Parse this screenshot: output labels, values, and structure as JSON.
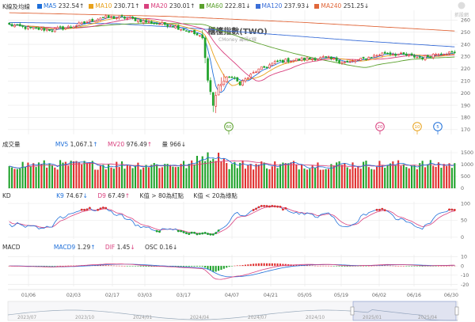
{
  "header": {
    "section_label": "K線及均線",
    "ma": [
      {
        "key": "MA5",
        "value": "232.54",
        "dir": "↑",
        "color": "#1e6fd9"
      },
      {
        "key": "MA10",
        "value": "230.71",
        "dir": "↑",
        "color": "#e8a21c"
      },
      {
        "key": "MA20",
        "value": "230.01",
        "dir": "↑",
        "color": "#d9407e"
      },
      {
        "key": "MA60",
        "value": "222.81",
        "dir": "↓",
        "color": "#5aa02c"
      },
      {
        "key": "MA120",
        "value": "237.93",
        "dir": "↓",
        "color": "#3b6fd8"
      },
      {
        "key": "MA240",
        "value": "251.25",
        "dir": "↓",
        "color": "#e0673a"
      }
    ]
  },
  "watermark": {
    "title": "櫃檯指數(TWO)",
    "subtitle": "CMoney 籌碼K線"
  },
  "logo_text": "抓股網",
  "volume_panel": {
    "label": "成交量",
    "mv5": {
      "key": "MV5",
      "value": "1,067.1",
      "dir": "↑",
      "color": "#1e6fd9"
    },
    "mv20": {
      "key": "MV20",
      "value": "976.49",
      "dir": "↑",
      "color": "#d9407e"
    },
    "vol": {
      "key": "量",
      "value": "966",
      "dir": "↓"
    }
  },
  "kd_panel": {
    "label": "KD",
    "k": {
      "key": "K9",
      "value": "74.67",
      "dir": "↓",
      "color": "#1e6fd9"
    },
    "d": {
      "key": "D9",
      "value": "67.49",
      "dir": "↑",
      "color": "#d9407e"
    },
    "note_hi": "K值 > 80為紅點",
    "note_lo": "K值 < 20為綠點"
  },
  "macd_panel": {
    "label": "MACD",
    "macd9": {
      "key": "MACD9",
      "value": "1.29",
      "dir": "↑",
      "color": "#1e6fd9"
    },
    "dif": {
      "key": "DIF",
      "value": "1.45",
      "dir": "↓",
      "color": "#d9407e"
    },
    "osc": {
      "key": "OSC",
      "value": "0.16",
      "dir": "↓"
    }
  },
  "colors": {
    "up": "#e0302f",
    "down": "#21a32c",
    "grid": "#e8e8e8",
    "axis_text": "#666"
  },
  "chart_data": {
    "type": "candlestick",
    "price_axis": {
      "ticks": [
        260,
        250,
        240,
        230,
        220,
        210,
        200,
        190,
        180,
        170
      ],
      "ylim": [
        166,
        268
      ]
    },
    "volume_axis": {
      "ticks": [
        1500,
        1000,
        500,
        0
      ],
      "ylim": [
        0,
        1600
      ]
    },
    "kd_axis": {
      "ticks": [
        100,
        50,
        0
      ],
      "ylim": [
        -5,
        105
      ]
    },
    "macd_axis": {
      "ticks": [
        10,
        0,
        -10,
        -20
      ],
      "ylim": [
        -22,
        12
      ]
    },
    "x_labels": [
      "01/06",
      "02/03",
      "02/17",
      "03/03",
      "03/17",
      "04/07",
      "04/21",
      "05/05",
      "05/19",
      "06/02",
      "06/16",
      "06/30"
    ],
    "navigator_labels": [
      "2023/07",
      "2023/10",
      "2024/01",
      "2024/04",
      "2024/07",
      "2024/10",
      "2025/01",
      "2025/04"
    ],
    "markers": [
      {
        "text": "60",
        "color": "#5aa02c",
        "at": "04/07"
      },
      {
        "text": "20",
        "color": "#d9407e",
        "at": "06/02"
      },
      {
        "text": "10",
        "color": "#e8a21c",
        "at": "06/16"
      },
      {
        "text": "5",
        "color": "#1e6fd9",
        "at": "06/23"
      }
    ],
    "close_key": [
      [
        0,
        256
      ],
      [
        8,
        253
      ],
      [
        16,
        252
      ],
      [
        24,
        255
      ],
      [
        34,
        262
      ],
      [
        44,
        262
      ],
      [
        52,
        258
      ],
      [
        60,
        256
      ],
      [
        68,
        250
      ],
      [
        72,
        245
      ],
      [
        74,
        212
      ],
      [
        76,
        190
      ],
      [
        78,
        206
      ],
      [
        82,
        214
      ],
      [
        86,
        208
      ],
      [
        92,
        218
      ],
      [
        100,
        226
      ],
      [
        110,
        228
      ],
      [
        118,
        229
      ],
      [
        126,
        225
      ],
      [
        132,
        228
      ],
      [
        140,
        233
      ],
      [
        148,
        231
      ],
      [
        154,
        229
      ],
      [
        160,
        233
      ],
      [
        166,
        233
      ]
    ],
    "ma120_key": [
      [
        0,
        258
      ],
      [
        40,
        257
      ],
      [
        70,
        253
      ],
      [
        100,
        248
      ],
      [
        130,
        243
      ],
      [
        166,
        238
      ]
    ],
    "ma240_key": [
      [
        0,
        266
      ],
      [
        60,
        263
      ],
      [
        110,
        258
      ],
      [
        166,
        251
      ]
    ]
  }
}
